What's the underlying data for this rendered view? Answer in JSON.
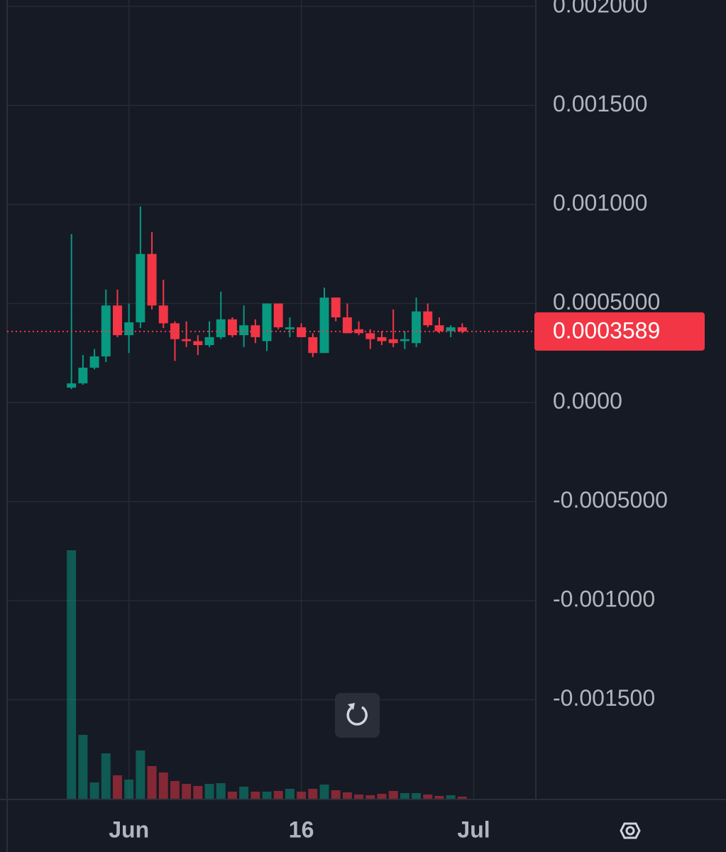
{
  "chart_data": {
    "type": "candlestick",
    "x": [
      0,
      1,
      2,
      3,
      4,
      5,
      6,
      7,
      8,
      9,
      10,
      11,
      12,
      13,
      14,
      15,
      16,
      17,
      18,
      19,
      20,
      21,
      22,
      23,
      24,
      25,
      26,
      27,
      28,
      29,
      30,
      31,
      32,
      33,
      34
    ],
    "open": [
      7.53e-05,
      9.7e-05,
      0.000176,
      0.000233,
      0.00049,
      0.00034,
      0.000405,
      0.00075,
      0.00049,
      0.0004,
      0.00032,
      0.00031,
      0.00029,
      0.00033,
      0.00042,
      0.00034,
      0.00039,
      0.00031,
      0.0005,
      0.00037,
      0.00038,
      0.00033,
      0.00025,
      0.00053,
      0.00043,
      0.00037,
      0.00035,
      0.00033,
      0.00032,
      0.00031,
      0.0003,
      0.00046,
      0.00039,
      0.00036,
      0.00038
    ],
    "high": [
      0.00085,
      0.00024,
      0.00027,
      0.00057,
      0.00057,
      0.0005,
      0.00099,
      0.00086,
      0.00062,
      0.00041,
      0.00041,
      0.00034,
      0.00041,
      0.00056,
      0.00043,
      0.00049,
      0.00042,
      0.0005,
      0.0005,
      0.00043,
      0.0004,
      0.00035,
      0.00058,
      0.00053,
      0.0005,
      0.00041,
      0.00037,
      0.00036,
      0.00047,
      0.00036,
      0.00053,
      0.0005,
      0.00043,
      0.00039,
      0.0004
    ],
    "low": [
      6.8e-05,
      9e-05,
      0.000168,
      0.000204,
      0.00033,
      0.00025,
      0.000376,
      0.00047,
      0.000376,
      0.00021,
      0.00028,
      0.00024,
      0.00028,
      0.00032,
      0.00033,
      0.00028,
      0.0003,
      0.00026,
      0.00037,
      0.00033,
      0.00033,
      0.00023,
      0.00025,
      0.00041,
      0.00035,
      0.00034,
      0.00027,
      0.00029,
      0.00028,
      0.00027,
      0.00028,
      0.00038,
      0.00035,
      0.00033,
      0.00035
    ],
    "close": [
      9.68e-05,
      0.000176,
      0.000233,
      0.00049,
      0.00034,
      0.000405,
      0.00075,
      0.00049,
      0.0004,
      0.00032,
      0.00031,
      0.00029,
      0.00033,
      0.00042,
      0.00034,
      0.00039,
      0.00033,
      0.0005,
      0.00038,
      0.00038,
      0.00033,
      0.00025,
      0.00053,
      0.00043,
      0.00035,
      0.00035,
      0.00032,
      0.00031,
      0.0003,
      0.00032,
      0.00046,
      0.00039,
      0.00036,
      0.00038,
      0.0003589
    ],
    "volume": [
      350,
      90,
      23,
      64,
      33,
      27,
      68,
      46,
      37,
      25,
      21,
      18,
      21,
      22,
      10,
      17,
      10,
      10,
      11,
      14,
      10,
      14,
      20,
      12,
      9,
      6,
      5,
      7,
      11,
      8,
      8,
      6,
      4,
      5,
      3
    ],
    "up_color": "#089981",
    "down_color": "#f23645",
    "last_price": 0.0003589,
    "xlim": [
      -5.6,
      40.4
    ],
    "ylim": [
      -0.002,
      0.002032
    ],
    "xticks": [
      {
        "value": 5,
        "label": "Jun"
      },
      {
        "value": 20,
        "label": "16"
      },
      {
        "value": 35,
        "label": "Jul"
      }
    ],
    "yticks": [
      {
        "value": 0.002,
        "label": "0.002000"
      },
      {
        "value": 0.0015,
        "label": "0.001500"
      },
      {
        "value": 0.001,
        "label": "0.001000"
      },
      {
        "value": 0.0005,
        "label": "0.0005000"
      },
      {
        "value": 0,
        "label": "0.0000"
      },
      {
        "value": -0.0005,
        "label": "-0.0005000"
      },
      {
        "value": -0.001,
        "label": "-0.001000"
      },
      {
        "value": -0.0015,
        "label": "-0.001500"
      }
    ],
    "grid": true
  }
}
